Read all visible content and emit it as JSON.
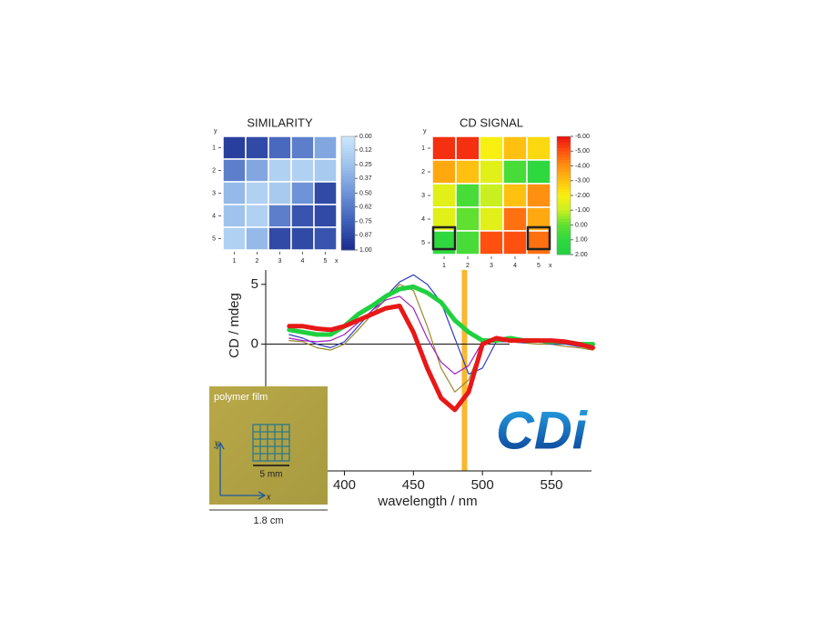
{
  "chart_data": [
    {
      "type": "heatmap",
      "title": "SIMILARITY",
      "xlabel": "x",
      "ylabel": "y",
      "xticks": [
        1,
        2,
        3,
        4,
        5
      ],
      "yticks": [
        1,
        2,
        3,
        4,
        5
      ],
      "z": [
        [
          0.9,
          0.85,
          0.7,
          0.6,
          0.4
        ],
        [
          0.6,
          0.4,
          0.15,
          0.15,
          0.2
        ],
        [
          0.3,
          0.15,
          0.2,
          0.5,
          0.85
        ],
        [
          0.25,
          0.15,
          0.6,
          0.8,
          0.85
        ],
        [
          0.15,
          0.3,
          0.85,
          0.85,
          0.8
        ]
      ],
      "zlim": [
        0,
        1
      ],
      "colorscale": [
        "#cde7fa",
        "#9fc3ec",
        "#6f93d8",
        "#3f5fb8",
        "#1a2a8c"
      ],
      "zticks": [
        {
          "value": 0,
          "label": "0.00"
        },
        {
          "value": 0.12,
          "label": "0.12"
        },
        {
          "value": 0.25,
          "label": "0.25"
        },
        {
          "value": 0.37,
          "label": "0.37"
        },
        {
          "value": 0.5,
          "label": "0.50"
        },
        {
          "value": 0.62,
          "label": "0.62"
        },
        {
          "value": 0.75,
          "label": "0.75"
        },
        {
          "value": 0.87,
          "label": "0.87"
        },
        {
          "value": 1,
          "label": "1.00"
        }
      ]
    },
    {
      "type": "heatmap",
      "title": "CD SIGNAL",
      "xlabel": "x",
      "ylabel": "y",
      "xticks": [
        1,
        2,
        3,
        4,
        5
      ],
      "yticks": [
        1,
        2,
        3,
        4,
        5
      ],
      "z": [
        [
          -5.5,
          -5.5,
          -2,
          -3,
          -2.5
        ],
        [
          -3.5,
          -3,
          -1.5,
          0.5,
          1
        ],
        [
          -1.5,
          0.5,
          -1,
          -3,
          -4
        ],
        [
          -1.5,
          0,
          -1.5,
          -4.5,
          -3.5
        ],
        [
          1,
          0.5,
          -5,
          -5,
          -4.5
        ]
      ],
      "zlim": [
        -6,
        2
      ],
      "colorscale": [
        "#e81010",
        "#ff5010",
        "#ff9010",
        "#ffc010",
        "#f8f010",
        "#c8f020",
        "#60e030",
        "#30d840",
        "#20d040"
      ],
      "zticks": [
        {
          "value": -6,
          "label": "-6.00"
        },
        {
          "value": -5,
          "label": "-5.00"
        },
        {
          "value": -4,
          "label": "-4.00"
        },
        {
          "value": -3,
          "label": "-3.00"
        },
        {
          "value": -2,
          "label": "-2.00"
        },
        {
          "value": -1,
          "label": "-1.00"
        },
        {
          "value": 0,
          "label": "0.00"
        },
        {
          "value": 1,
          "label": "1.00"
        },
        {
          "value": 2,
          "label": "2.00"
        }
      ]
    },
    {
      "type": "line",
      "xlabel": "wavelength / nm",
      "ylabel": "CD / mdeg",
      "x": [
        360,
        370,
        380,
        390,
        400,
        410,
        420,
        430,
        440,
        450,
        460,
        470,
        480,
        490,
        500,
        510,
        520,
        530,
        540,
        550,
        560,
        570,
        580
      ],
      "xlim": [
        343,
        579
      ],
      "ylim": [
        -10.6,
        6.2
      ],
      "xticks": [
        400,
        450,
        500,
        550
      ],
      "yticks": [
        0,
        5
      ],
      "marker_x": 487,
      "marker_color": "#f8b830",
      "series": [
        {
          "color": "#9a8a30",
          "width": 1.2,
          "values": [
            0.3,
            0.2,
            -0.3,
            -0.5,
            0.0,
            1.2,
            2.5,
            3.8,
            5.0,
            4.5,
            1.5,
            -2.0,
            -4.0,
            -3.0,
            0.0,
            0.4,
            0.2,
            0.1,
            0.0,
            0.0,
            -0.2,
            -0.3,
            -0.5
          ]
        },
        {
          "color": "#3040c0",
          "width": 1.2,
          "values": [
            0.8,
            0.5,
            0.0,
            -0.3,
            0.2,
            1.5,
            2.8,
            4.0,
            5.2,
            5.8,
            5.0,
            3.5,
            0.5,
            -2.5,
            -2.0,
            0.2,
            0.2,
            0.1,
            0.2,
            0.0,
            0.0,
            -0.2,
            -0.3
          ]
        },
        {
          "color": "#a020c0",
          "width": 1.2,
          "values": [
            0.5,
            0.3,
            0.2,
            0.3,
            0.8,
            1.8,
            2.8,
            3.7,
            4.0,
            3.0,
            0.5,
            -1.5,
            -2.5,
            -1.8,
            0.2,
            0.5,
            0.3,
            0.2,
            0.3,
            0.2,
            0.1,
            0.0,
            -0.2
          ]
        },
        {
          "color": "#20d040",
          "width": 5,
          "values": [
            1.2,
            1.0,
            0.8,
            0.8,
            1.5,
            2.5,
            3.2,
            4.0,
            4.6,
            4.8,
            4.3,
            3.5,
            2.0,
            1.0,
            0.3,
            0.3,
            0.5,
            0.3,
            0.3,
            0.2,
            0.2,
            0.0,
            0.0
          ]
        },
        {
          "color": "#e81818",
          "width": 5,
          "values": [
            1.5,
            1.5,
            1.3,
            1.2,
            1.5,
            2.0,
            2.5,
            3.0,
            3.2,
            1.0,
            -2.0,
            -4.5,
            -5.5,
            -4.0,
            0.0,
            0.5,
            0.3,
            0.3,
            0.3,
            0.3,
            0.2,
            0.0,
            -0.3
          ]
        }
      ]
    }
  ],
  "inset": {
    "label": "polymer film",
    "scale_bar": "5 mm",
    "width": "1.8 cm",
    "axis_x": "x",
    "axis_y": "y"
  },
  "logo": "CDi"
}
